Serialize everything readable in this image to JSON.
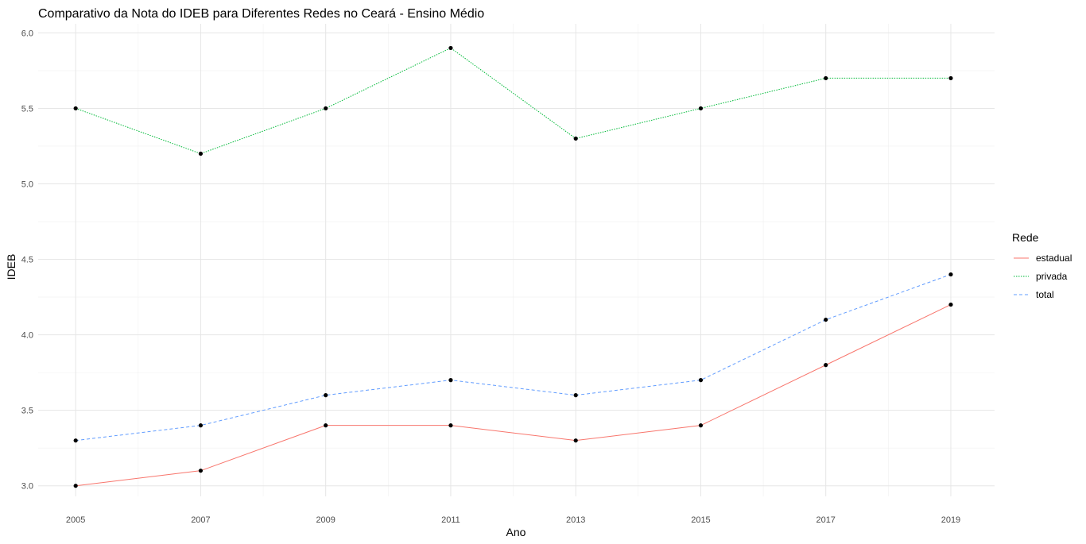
{
  "chart_data": {
    "type": "line",
    "title": "Comparativo da Nota do IDEB para Diferentes Redes no Ceará - Ensino Médio",
    "xlabel": "Ano",
    "ylabel": "IDEB",
    "x": [
      2005,
      2007,
      2009,
      2011,
      2013,
      2015,
      2017,
      2019
    ],
    "x_ticks": [
      "2005",
      "2007",
      "2009",
      "2011",
      "2013",
      "2015",
      "2017",
      "2019"
    ],
    "y_ticks": [
      "3.0",
      "3.5",
      "4.0",
      "4.5",
      "5.0",
      "5.5",
      "6.0"
    ],
    "xlim": [
      2004.4,
      2019.7
    ],
    "ylim": [
      2.93,
      6.06
    ],
    "grid": true,
    "legend": {
      "title": "Rede",
      "position": "right"
    },
    "series": [
      {
        "name": "estadual",
        "color": "#F8766D",
        "dash": "solid",
        "values": [
          3.0,
          3.1,
          3.4,
          3.4,
          3.3,
          3.4,
          3.8,
          4.2
        ]
      },
      {
        "name": "privada",
        "color": "#00BA38",
        "dash": "dotted",
        "values": [
          5.5,
          5.2,
          5.5,
          5.9,
          5.3,
          5.5,
          5.7,
          5.7
        ]
      },
      {
        "name": "total",
        "color": "#619CFF",
        "dash": "dashed",
        "values": [
          3.3,
          3.4,
          3.6,
          3.7,
          3.6,
          3.7,
          4.1,
          4.4
        ]
      }
    ]
  }
}
